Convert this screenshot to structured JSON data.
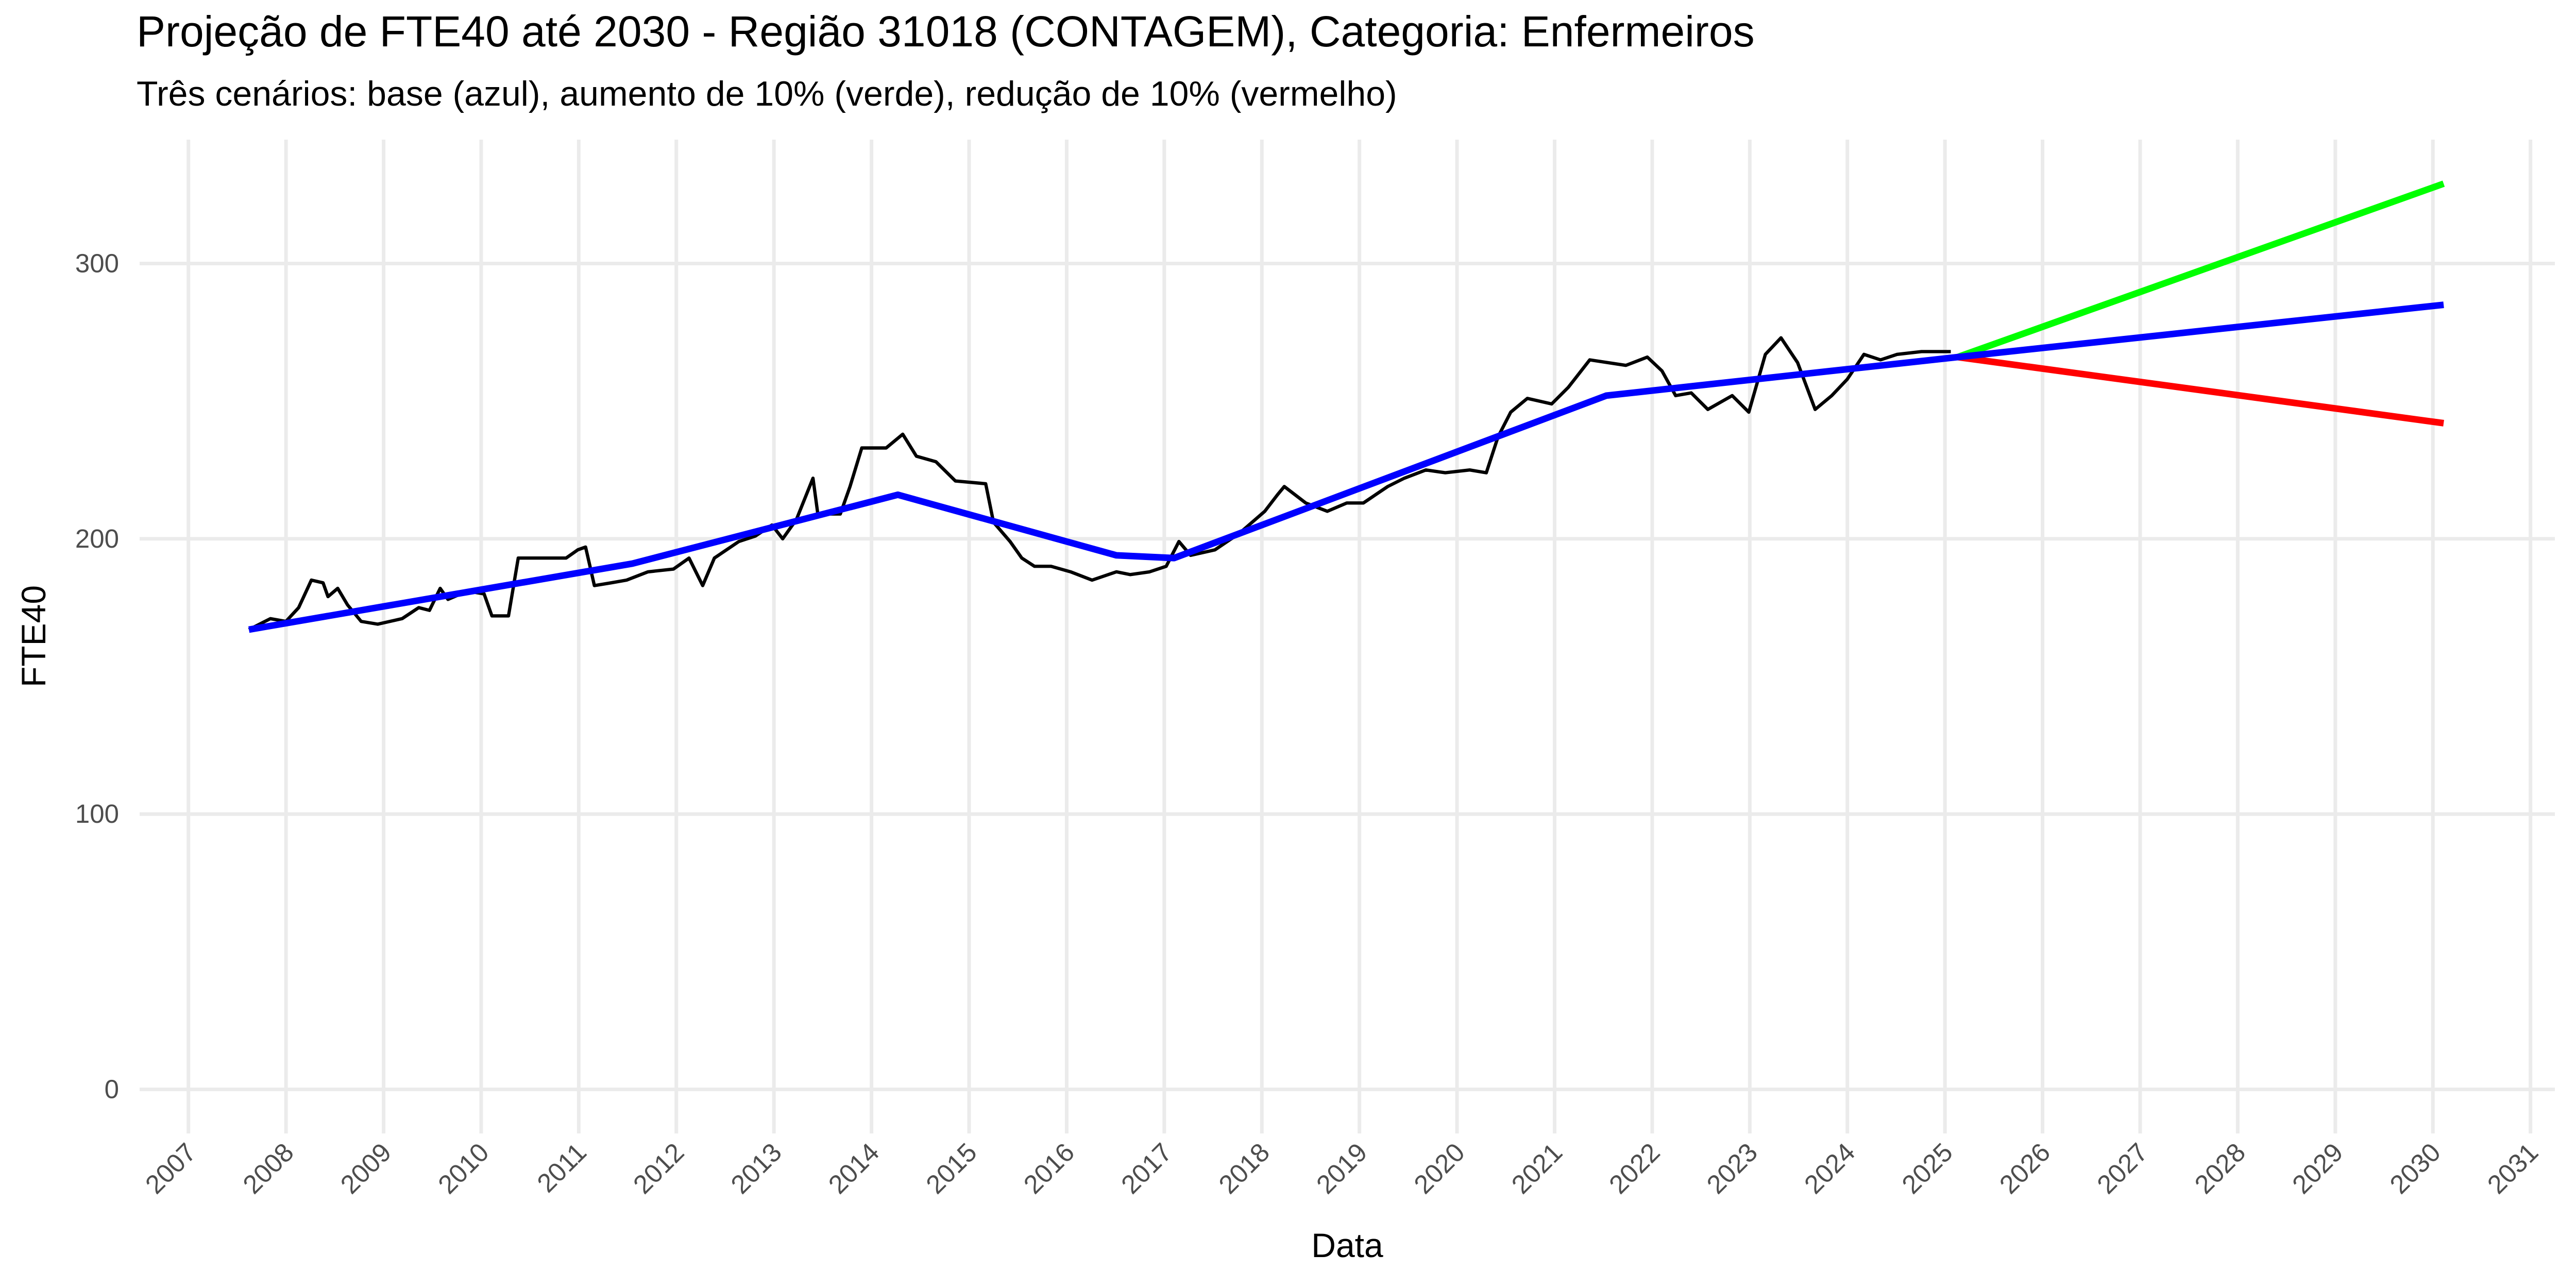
{
  "chart_data": {
    "type": "line",
    "title": "Projeção de FTE40 até 2030 - Região 31018 (CONTAGEM), Categoria: Enfermeiros",
    "subtitle": "Três cenários: base (azul), aumento de 10% (verde), redução de 10% (vermelho)",
    "x_label": "Data",
    "y_label": "FTE40",
    "xlim": [
      2006.5,
      2031.25
    ],
    "xticks": [
      2007,
      2008,
      2009,
      2010,
      2011,
      2012,
      2013,
      2014,
      2015,
      2016,
      2017,
      2018,
      2019,
      2020,
      2021,
      2022,
      2023,
      2024,
      2025,
      2026,
      2027,
      2028,
      2029,
      2030,
      2031
    ],
    "ylim": [
      -16,
      345
    ],
    "yticks": [
      0,
      100,
      200,
      300
    ],
    "grid": true,
    "series": [
      {
        "color": "#000000",
        "width": 2,
        "x": [
          2007.62,
          2007.84,
          2008.0,
          2008.13,
          2008.26,
          2008.38,
          2008.43,
          2008.53,
          2008.63,
          2008.77,
          2008.94,
          2009.19,
          2009.36,
          2009.47,
          2009.58,
          2009.66,
          2009.86,
          2010.03,
          2010.11,
          2010.28,
          2010.38,
          2010.87,
          2010.99,
          2011.07,
          2011.16,
          2011.33,
          2011.49,
          2011.71,
          2011.97,
          2012.13,
          2012.27,
          2012.39,
          2012.64,
          2012.81,
          2012.98,
          2013.09,
          2013.23,
          2013.4,
          2013.45,
          2013.68,
          2013.78,
          2013.9,
          2014.15,
          2014.32,
          2014.46,
          2014.66,
          2014.86,
          2015.17,
          2015.25,
          2015.42,
          2015.54,
          2015.67,
          2015.84,
          2016.04,
          2016.26,
          2016.51,
          2016.65,
          2016.85,
          2017.02,
          2017.15,
          2017.27,
          2017.52,
          2017.77,
          2018.03,
          2018.16,
          2018.23,
          2018.45,
          2018.67,
          2018.87,
          2019.04,
          2019.29,
          2019.46,
          2019.68,
          2019.88,
          2020.13,
          2020.3,
          2020.42,
          2020.55,
          2020.72,
          2020.97,
          2021.14,
          2021.36,
          2021.73,
          2021.95,
          2022.1,
          2022.24,
          2022.4,
          2022.57,
          2022.82,
          2022.99,
          2023.16,
          2023.32,
          2023.49,
          2023.67,
          2023.84,
          2024.0,
          2024.17,
          2024.34,
          2024.51,
          2024.76,
          2025.06
        ],
        "values": [
          167,
          171,
          170,
          175,
          185,
          184,
          179,
          182,
          176,
          170,
          169,
          171,
          175,
          174,
          182,
          178,
          181,
          180,
          172,
          172,
          193,
          193,
          196,
          197,
          183,
          184,
          185,
          188,
          189,
          193,
          183,
          193,
          199,
          201,
          205,
          200,
          207,
          222,
          209,
          209,
          219,
          233,
          233,
          238,
          230,
          228,
          221,
          220,
          206,
          199,
          193,
          190,
          190,
          188,
          185,
          188,
          187,
          188,
          190,
          199,
          194,
          196,
          202,
          210,
          216,
          219,
          213,
          210,
          213,
          213,
          219,
          222,
          225,
          224,
          225,
          224,
          237,
          246,
          251,
          249,
          255,
          265,
          263,
          266,
          261,
          252,
          253,
          247,
          252,
          246,
          267,
          273,
          264,
          247,
          252,
          258,
          267,
          265,
          267,
          268,
          268
        ]
      },
      {
        "color": "#00ff00",
        "width": 4,
        "x": [
          2025.13,
          2030.11
        ],
        "values": [
          266,
          329
        ]
      },
      {
        "color": "#ff0000",
        "width": 4,
        "x": [
          2025.13,
          2030.11
        ],
        "values": [
          266,
          242
        ]
      },
      {
        "color": "#0000ff",
        "width": 4,
        "x": [
          2007.62,
          2011.55,
          2014.27,
          2016.51,
          2017.1,
          2021.53,
          2025.13,
          2030.11
        ],
        "values": [
          167,
          191,
          216,
          194,
          193,
          252,
          266,
          285
        ]
      }
    ]
  }
}
